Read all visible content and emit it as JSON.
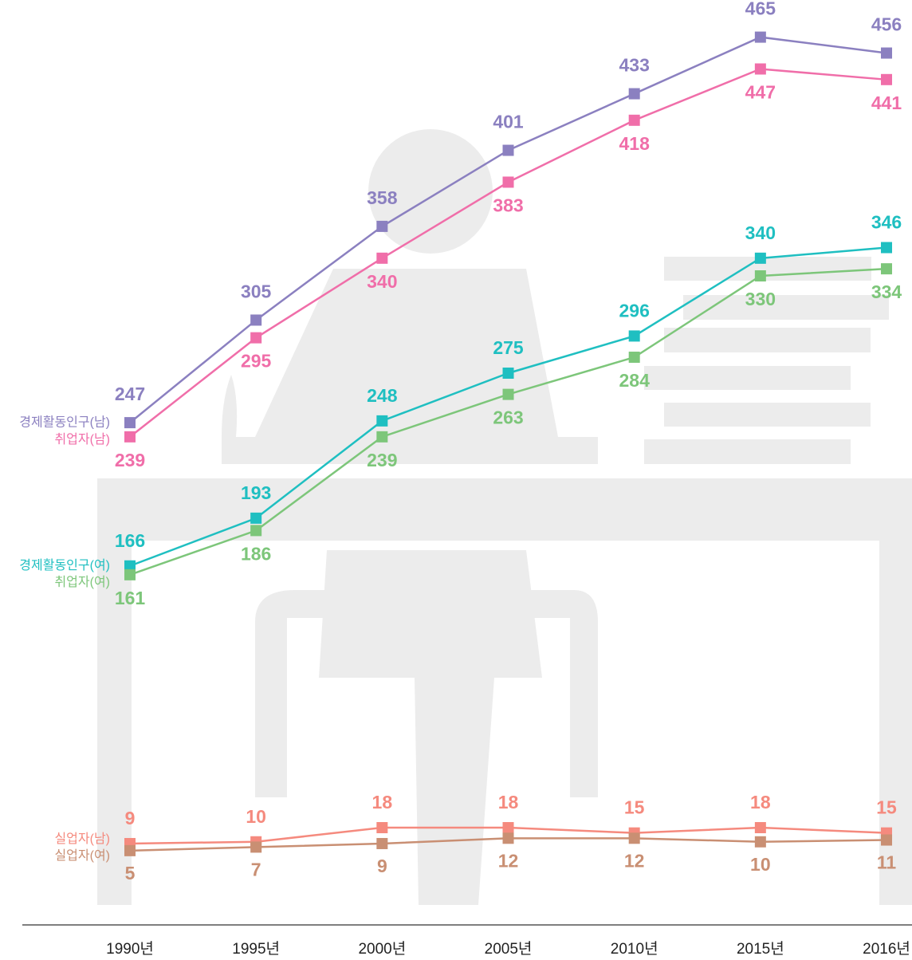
{
  "chart_data": {
    "type": "line",
    "categories": [
      "1990년",
      "1995년",
      "2000년",
      "2005년",
      "2010년",
      "2015년",
      "2016년"
    ],
    "ylim": [
      -37,
      486
    ],
    "series": [
      {
        "name": "경제활동인구(남)",
        "color": "#8b80c0",
        "values": [
          247,
          305,
          358,
          401,
          433,
          465,
          456
        ]
      },
      {
        "name": "취업자(남)",
        "color": "#f06ea9",
        "values": [
          239,
          295,
          340,
          383,
          418,
          447,
          441
        ]
      },
      {
        "name": "경제활동인구(여)",
        "color": "#1fbfc1",
        "values": [
          166,
          193,
          248,
          275,
          296,
          340,
          346
        ]
      },
      {
        "name": "취업자(여)",
        "color": "#7dc67a",
        "values": [
          161,
          186,
          239,
          263,
          284,
          330,
          334
        ]
      },
      {
        "name": "실업자(남)",
        "color": "#f58a7e",
        "values": [
          9,
          10,
          18,
          18,
          15,
          18,
          15
        ]
      },
      {
        "name": "실업자(여)",
        "color": "#c98f73",
        "values": [
          5,
          7,
          9,
          12,
          12,
          10,
          11
        ]
      }
    ]
  }
}
